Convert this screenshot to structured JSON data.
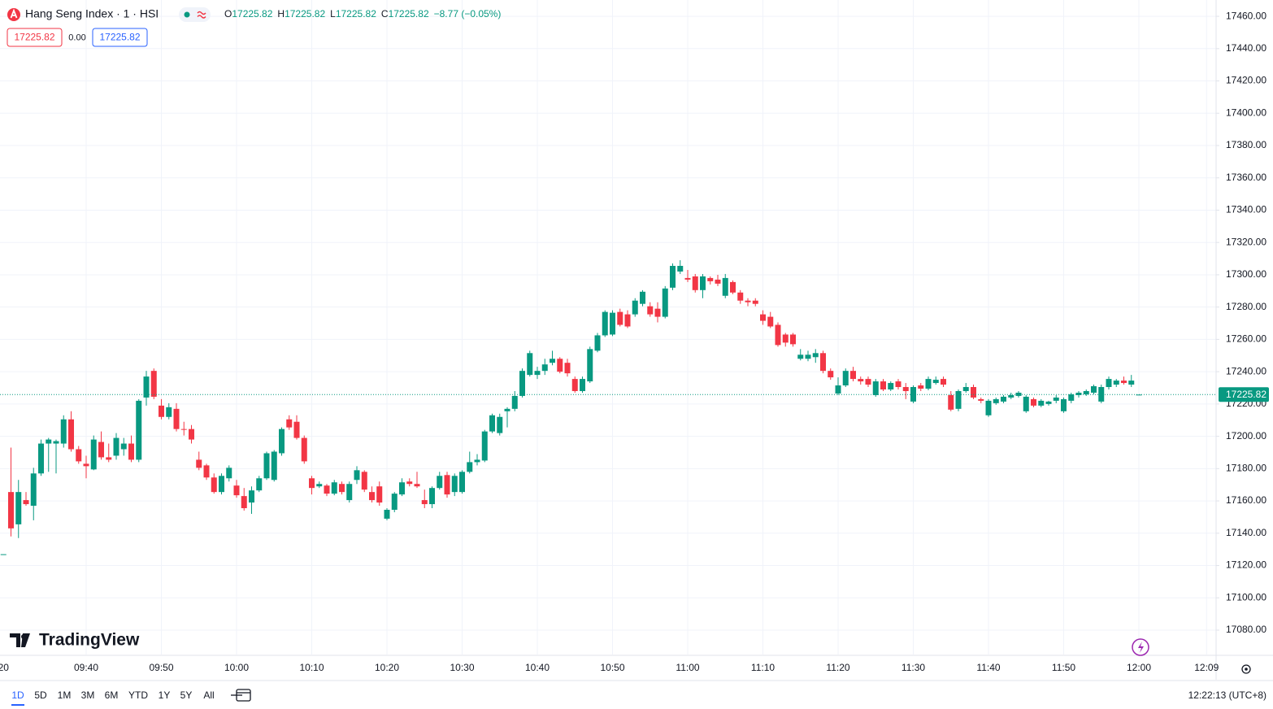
{
  "chart_data": {
    "type": "candlestick",
    "symbol": "Hang Seng Index · 1 · HSI",
    "legend_fields": [
      {
        "key": "O",
        "value": "17225.82"
      },
      {
        "key": "H",
        "value": "17225.82"
      },
      {
        "key": "L",
        "value": "17225.82"
      },
      {
        "key": "C",
        "value": "17225.82"
      }
    ],
    "change": "−8.77 (−0.05%)",
    "sell_price": "17225.82",
    "spread": "0.00",
    "buy_price": "17225.82",
    "watermark": "TradingView",
    "up_color": "#089981",
    "down_color": "#f23645",
    "grid": true,
    "last_price": {
      "value": 17225.82,
      "label": "17225.82"
    },
    "categories": [
      "20",
      null,
      null,
      null,
      null,
      null,
      null,
      null,
      null,
      null,
      null,
      "09:40",
      null,
      null,
      null,
      null,
      null,
      null,
      null,
      null,
      null,
      "09:50",
      null,
      null,
      null,
      null,
      null,
      null,
      null,
      null,
      null,
      "10:00",
      null,
      null,
      null,
      null,
      null,
      null,
      null,
      null,
      null,
      "10:10",
      null,
      null,
      null,
      null,
      null,
      null,
      null,
      null,
      null,
      "10:20",
      null,
      null,
      null,
      null,
      null,
      null,
      null,
      null,
      null,
      "10:30",
      null,
      null,
      null,
      null,
      null,
      null,
      null,
      null,
      null,
      "10:40",
      null,
      null,
      null,
      null,
      null,
      null,
      null,
      null,
      null,
      "10:50",
      null,
      null,
      null,
      null,
      null,
      null,
      null,
      null,
      null,
      "11:00",
      null,
      null,
      null,
      null,
      null,
      null,
      null,
      null,
      null,
      "11:10",
      null,
      null,
      null,
      null,
      null,
      null,
      null,
      null,
      null,
      "11:20",
      null,
      null,
      null,
      null,
      null,
      null,
      null,
      null,
      null,
      "11:30",
      null,
      null,
      null,
      null,
      null,
      null,
      null,
      null,
      null,
      "11:40",
      null,
      null,
      null,
      null,
      null,
      null,
      null,
      null,
      null,
      "11:50",
      null,
      null,
      null,
      null,
      null,
      null,
      null,
      null,
      null,
      "12:00",
      null,
      null,
      null,
      null,
      null,
      null,
      null,
      null,
      "12:09"
    ],
    "open": [
      17127,
      17165.5,
      17145.5,
      17160.5,
      17157,
      17177,
      17195.5,
      17195.5,
      17195.5,
      17210.5,
      17192,
      17183,
      17179.5,
      17196.5,
      17187,
      17188,
      17192,
      17195.5,
      17185.5,
      17224,
      17240.5,
      17219,
      17212,
      17217,
      17204.5,
      17204.5,
      17185.5,
      17182,
      17174.5,
      17165.5,
      17174,
      17169.5,
      17163,
      17159,
      17166.5,
      17174,
      17173,
      17189.5,
      17210.5,
      17209,
      17199,
      17174,
      17169,
      17169.5,
      17164.5,
      17170.5,
      17160.5,
      17173,
      17178,
      17165.5,
      17169,
      17149,
      17154.5,
      17164,
      17172,
      17170.5,
      17160.5,
      17158,
      17168,
      17176,
      17165.5,
      17165.5,
      17178,
      17184,
      17185,
      17203,
      17202,
      17215.5,
      17217,
      17225,
      17238,
      17238,
      17240.5,
      17245.5,
      17248,
      17245.5,
      17235.5,
      17228,
      17234,
      17253,
      17262.5,
      17263,
      17277,
      17275.5,
      17275.5,
      17282,
      17280.5,
      17279,
      17274,
      17292,
      17302,
      17298,
      17299,
      17290.5,
      17298,
      17297,
      17287,
      17295.5,
      17289,
      17284,
      17284,
      17275.5,
      17274,
      17269,
      17263,
      17263,
      17248,
      17248,
      17249,
      17251.5,
      17240.5,
      17226.5,
      17231.5,
      17240.5,
      17235.5,
      17235.5,
      17225.5,
      17234,
      17229,
      17234,
      17230.5,
      17221.5,
      17231.5,
      17229.5,
      17233,
      17235.5,
      17225.5,
      17217,
      17228,
      17230.5,
      17223,
      17213,
      17220.5,
      17221.5,
      17224,
      17225,
      17215.5,
      17223,
      17219,
      17220,
      17222,
      17215.5,
      17222,
      17225.5,
      17226,
      17227,
      17221.5,
      17230.5,
      17232,
      17234.5,
      17232,
      17225.82,
      null,
      null,
      null,
      null,
      null,
      null,
      null,
      null,
      null
    ],
    "high": [
      17127,
      17193,
      17173,
      17165.5,
      17180.5,
      17198,
      17199,
      17198,
      17213,
      17215.5,
      17194,
      17188,
      17200.5,
      17203,
      17195.5,
      17202,
      17199,
      17200.5,
      17223,
      17240.5,
      17242,
      17223,
      17220.5,
      17220.5,
      17209,
      17207,
      17190.5,
      17183,
      17177,
      17177,
      17182,
      17173,
      17168,
      17169,
      17175.5,
      17190.5,
      17191.5,
      17205.5,
      17213,
      17213,
      17200.5,
      17175.5,
      17172,
      17170.5,
      17173,
      17172,
      17172,
      17181.5,
      17179,
      17169,
      17172,
      17155.5,
      17165.5,
      17174,
      17174,
      17178,
      17167,
      17169,
      17178,
      17178,
      17177,
      17179,
      17190.5,
      17189,
      17204,
      17214,
      17214,
      17218,
      17228,
      17242,
      17253,
      17243,
      17248,
      17253,
      17249,
      17248,
      17237,
      17237,
      17255.5,
      17264,
      17278,
      17278,
      17279,
      17278,
      17285.5,
      17290.5,
      17283,
      17283,
      17293,
      17307,
      17309,
      17303,
      17300.5,
      17300.5,
      17299,
      17300,
      17300.5,
      17296.5,
      17290.5,
      17285.5,
      17285.5,
      17278,
      17277,
      17270.5,
      17264,
      17264,
      17254,
      17253,
      17254,
      17253,
      17242,
      17236.5,
      17242,
      17243,
      17237,
      17237,
      17235.5,
      17235.5,
      17234,
      17235.5,
      17233,
      17231.5,
      17233,
      17237,
      17237,
      17237,
      17228,
      17229,
      17233,
      17232,
      17224,
      17223,
      17224,
      17225.5,
      17227,
      17228,
      17225.5,
      17224,
      17223,
      17222,
      17225.5,
      17224,
      17227,
      17228,
      17229,
      17232,
      17232,
      17237,
      17235.5,
      17237,
      17238,
      17225.82,
      null,
      null,
      null,
      null,
      null,
      null,
      null,
      null,
      null
    ],
    "low": [
      17127,
      17138,
      17137,
      17157,
      17148,
      17175.5,
      17178,
      17177,
      17193,
      17190.5,
      17183,
      17174,
      17179,
      17185.5,
      17184,
      17185.5,
      17188,
      17184,
      17184,
      17219,
      17223,
      17210.5,
      17210.5,
      17203,
      17200.5,
      17195.5,
      17179,
      17173,
      17164.5,
      17164,
      17172,
      17162,
      17154,
      17152,
      17165.5,
      17173,
      17172,
      17188,
      17204,
      17198,
      17183,
      17164,
      17168,
      17163,
      17163.5,
      17164,
      17159,
      17170.5,
      17165.5,
      17159,
      17157,
      17148,
      17153,
      17163,
      17169,
      17168,
      17155.5,
      17155.5,
      17167,
      17162,
      17163,
      17164.5,
      17177,
      17182,
      17184,
      17202,
      17200.5,
      17205.5,
      17215.5,
      17224,
      17237,
      17235.5,
      17238,
      17244,
      17239,
      17237,
      17227,
      17227,
      17233,
      17252,
      17261.5,
      17262,
      17268,
      17267,
      17274,
      17280.5,
      17274,
      17270.5,
      17273,
      17290.5,
      17300.5,
      17295.5,
      17289,
      17285.5,
      17294,
      17293,
      17285.5,
      17288,
      17282,
      17280.5,
      17280.5,
      17269,
      17267,
      17255.5,
      17255.5,
      17255.5,
      17247,
      17246.5,
      17245.5,
      17239,
      17235,
      17225.5,
      17230.5,
      17234,
      17232,
      17230.5,
      17224.5,
      17228,
      17228,
      17229,
      17223,
      17220.5,
      17228,
      17228.5,
      17232,
      17230.5,
      17215.5,
      17215.5,
      17227,
      17223,
      17220.5,
      17212,
      17219.5,
      17220.5,
      17223,
      17224,
      17214.5,
      17218,
      17218,
      17219,
      17220.5,
      17214.5,
      17220.5,
      17224,
      17225,
      17226,
      17220.5,
      17229,
      17230.5,
      17232,
      17230.5,
      17225.82,
      null,
      null,
      null,
      null,
      null,
      null,
      null,
      null,
      null
    ],
    "close": [
      17127,
      17143,
      17165.5,
      17158,
      17177,
      17195.5,
      17198,
      17197,
      17210.5,
      17192,
      17184.5,
      17181.5,
      17198,
      17187,
      17185.5,
      17199,
      17195.5,
      17185.5,
      17222,
      17237,
      17224.5,
      17212,
      17218,
      17204.5,
      17204,
      17198,
      17180.5,
      17174.5,
      17165.5,
      17175.5,
      17180.5,
      17163.5,
      17155.5,
      17166.5,
      17174,
      17189.5,
      17190.5,
      17204.5,
      17205.5,
      17199,
      17184.5,
      17168,
      17170.5,
      17164.5,
      17171.5,
      17165.5,
      17170.5,
      17179,
      17167,
      17160.5,
      17159,
      17154.5,
      17164.5,
      17171.5,
      17170.5,
      17169,
      17158,
      17168,
      17175.5,
      17164,
      17175.5,
      17178,
      17184,
      17185.5,
      17203,
      17213,
      17212,
      17217,
      17225,
      17240.5,
      17251.5,
      17240.5,
      17244.5,
      17248,
      17240,
      17239,
      17228,
      17235.5,
      17254,
      17262.5,
      17277,
      17276.5,
      17269,
      17268,
      17284,
      17289.5,
      17275.5,
      17274,
      17291.5,
      17305.5,
      17305.5,
      17297,
      17290.5,
      17299,
      17296,
      17294.5,
      17298,
      17289,
      17284,
      17283,
      17282,
      17271.5,
      17268,
      17256.5,
      17258,
      17257,
      17250.5,
      17250.5,
      17251.5,
      17240.5,
      17236.5,
      17231.5,
      17240.5,
      17235.5,
      17234,
      17232,
      17234,
      17229,
      17233,
      17230.5,
      17228,
      17230.5,
      17229.5,
      17235.5,
      17235,
      17232,
      17216.5,
      17228,
      17230.5,
      17224,
      17222,
      17222,
      17223,
      17224.5,
      17225.5,
      17227,
      17224.5,
      17219,
      17222,
      17221.5,
      17224,
      17223,
      17226,
      17227,
      17228,
      17231,
      17230.5,
      17235.5,
      17234.5,
      17233,
      17234.5,
      17225.82,
      null,
      null,
      null,
      null,
      null,
      null,
      null,
      null,
      null
    ],
    "ylim": [
      17064.9,
      17469.1
    ],
    "yticks": [
      {
        "value": 17080,
        "label": "17080.00"
      },
      {
        "value": 17100,
        "label": "17100.00"
      },
      {
        "value": 17120,
        "label": "17120.00"
      },
      {
        "value": 17140,
        "label": "17140.00"
      },
      {
        "value": 17160,
        "label": "17160.00"
      },
      {
        "value": 17180,
        "label": "17180.00"
      },
      {
        "value": 17200,
        "label": "17200.00"
      },
      {
        "value": 17220,
        "label": "17220.00"
      },
      {
        "value": 17240,
        "label": "17240.00"
      },
      {
        "value": 17260,
        "label": "17260.00"
      },
      {
        "value": 17280,
        "label": "17280.00"
      },
      {
        "value": 17300,
        "label": "17300.00"
      },
      {
        "value": 17320,
        "label": "17320.00"
      },
      {
        "value": 17340,
        "label": "17340.00"
      },
      {
        "value": 17360,
        "label": "17360.00"
      },
      {
        "value": 17380,
        "label": "17380.00"
      },
      {
        "value": 17400,
        "label": "17400.00"
      },
      {
        "value": 17420,
        "label": "17420.00"
      },
      {
        "value": 17440,
        "label": "17440.00"
      },
      {
        "value": 17460,
        "label": "17460.00"
      }
    ],
    "ranges": [
      "1D",
      "5D",
      "1M",
      "3M",
      "6M",
      "YTD",
      "1Y",
      "5Y",
      "All"
    ],
    "clock": "12:22:13 (UTC+8)"
  }
}
